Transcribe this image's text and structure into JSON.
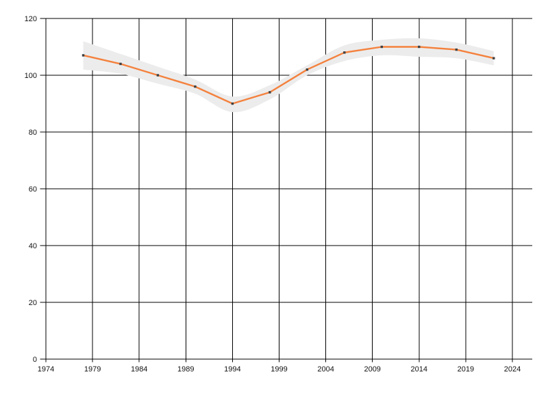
{
  "chart_data": {
    "type": "line",
    "title": "",
    "x": [
      1978,
      1982,
      1986,
      1990,
      1994,
      1998,
      2002,
      2006,
      2010,
      2014,
      2018,
      2022
    ],
    "series": [
      {
        "name": "main-series",
        "values": [
          107,
          104,
          100,
          96,
          90,
          94,
          102,
          108,
          110,
          110,
          109,
          106
        ]
      }
    ],
    "band": {
      "name": "confidence-band",
      "upper": [
        112,
        107.5,
        103,
        98.5,
        92.5,
        96.5,
        103.5,
        110.5,
        112.5,
        113,
        111.5,
        108.5
      ],
      "lower": [
        102,
        100.5,
        97,
        93.5,
        87,
        91.5,
        100,
        105,
        107,
        106.5,
        106,
        103.5
      ]
    },
    "x_tick_labels": [
      "1974",
      "1979",
      "1984",
      "1989",
      "1994",
      "1999",
      "2004",
      "2009",
      "2014",
      "2019",
      "2024"
    ],
    "y_tick_labels": [
      "0",
      "20",
      "40",
      "60",
      "80",
      "100",
      "120"
    ],
    "xlim": [
      1974,
      2026
    ],
    "ylim": [
      0,
      120
    ],
    "grid": "both",
    "legend": "none",
    "colors": {
      "line": "#f4813d",
      "marker": "#404040",
      "band": "#ececec",
      "grid": "#000000",
      "label": "#111111",
      "background": "#ffffff"
    }
  }
}
